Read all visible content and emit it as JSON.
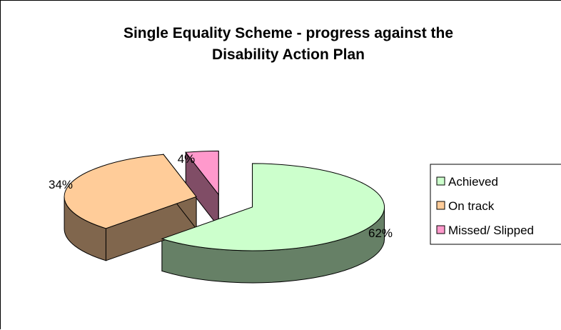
{
  "chart_data": {
    "type": "pie",
    "style": "3d-exploded",
    "title": "Single Equality Scheme - progress against the Disability Action Plan",
    "title_lines": [
      "Single Equality Scheme - progress against the",
      "Disability Action Plan"
    ],
    "slices": [
      {
        "label": "Achieved",
        "value": 62,
        "value_label": "62%",
        "color": "#ccffcc"
      },
      {
        "label": "On track",
        "value": 34,
        "value_label": "34%",
        "color": "#ffcc99"
      },
      {
        "label": "Missed/ Slipped",
        "value": 4,
        "value_label": "4%",
        "color": "#ff99cc"
      }
    ],
    "legend_position": "right"
  }
}
